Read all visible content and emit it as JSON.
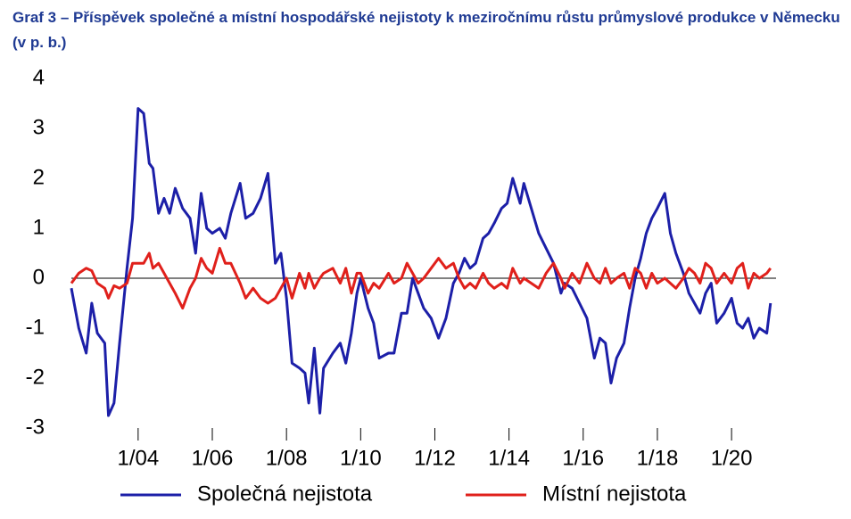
{
  "chart_data": {
    "type": "line",
    "title": "Graf 3 – Příspěvek společné a místní hospodářské nejistoty k meziročnímu růstu průmyslové produkce v Německu (v p. b.)",
    "x": [
      2002.2,
      2002.4,
      2002.6,
      2002.75,
      2002.9,
      2003.1,
      2003.2,
      2003.35,
      2003.5,
      2003.7,
      2003.85,
      2004.0,
      2004.15,
      2004.3,
      2004.4,
      2004.55,
      2004.7,
      2004.85,
      2005.0,
      2005.2,
      2005.4,
      2005.55,
      2005.7,
      2005.85,
      2006.0,
      2006.2,
      2006.35,
      2006.5,
      2006.75,
      2006.9,
      2007.1,
      2007.3,
      2007.5,
      2007.7,
      2007.85,
      2008.0,
      2008.15,
      2008.35,
      2008.5,
      2008.6,
      2008.75,
      2008.9,
      2009.0,
      2009.25,
      2009.45,
      2009.6,
      2009.75,
      2009.9,
      2010.0,
      2010.2,
      2010.35,
      2010.5,
      2010.75,
      2010.9,
      2011.1,
      2011.25,
      2011.4,
      2011.55,
      2011.7,
      2011.9,
      2012.1,
      2012.3,
      2012.5,
      2012.65,
      2012.8,
      2012.95,
      2013.1,
      2013.3,
      2013.45,
      2013.6,
      2013.8,
      2013.95,
      2014.1,
      2014.3,
      2014.4,
      2014.6,
      2014.8,
      2015.0,
      2015.2,
      2015.4,
      2015.5,
      2015.7,
      2015.9,
      2016.1,
      2016.3,
      2016.45,
      2016.6,
      2016.75,
      2016.9,
      2017.1,
      2017.25,
      2017.4,
      2017.55,
      2017.7,
      2017.85,
      2018.0,
      2018.2,
      2018.35,
      2018.5,
      2018.7,
      2018.85,
      2019.0,
      2019.15,
      2019.3,
      2019.45,
      2019.6,
      2019.8,
      2020.0,
      2020.15,
      2020.3,
      2020.45,
      2020.6,
      2020.75,
      2020.95,
      2021.05
    ],
    "series": [
      {
        "name": "Společná nejistota",
        "color": "#1c1fa8",
        "values": [
          -0.2,
          -1.0,
          -1.5,
          -0.5,
          -1.1,
          -1.3,
          -2.75,
          -2.5,
          -1.3,
          0.2,
          1.2,
          3.4,
          3.3,
          2.3,
          2.2,
          1.3,
          1.6,
          1.3,
          1.8,
          1.4,
          1.2,
          0.5,
          1.7,
          1.0,
          0.9,
          1.0,
          0.8,
          1.3,
          1.9,
          1.2,
          1.3,
          1.6,
          2.1,
          0.3,
          0.5,
          -0.4,
          -1.7,
          -1.8,
          -1.9,
          -2.5,
          -1.4,
          -2.7,
          -1.8,
          -1.5,
          -1.3,
          -1.7,
          -1.1,
          -0.3,
          0.0,
          -0.6,
          -0.9,
          -1.6,
          -1.5,
          -1.5,
          -0.7,
          -0.7,
          0.0,
          -0.3,
          -0.6,
          -0.8,
          -1.2,
          -0.8,
          -0.1,
          0.1,
          0.4,
          0.2,
          0.3,
          0.8,
          0.9,
          1.1,
          1.4,
          1.5,
          2.0,
          1.5,
          1.9,
          1.4,
          0.9,
          0.6,
          0.3,
          -0.3,
          -0.1,
          -0.2,
          -0.5,
          -0.8,
          -1.6,
          -1.2,
          -1.3,
          -2.1,
          -1.6,
          -1.3,
          -0.6,
          0.0,
          0.4,
          0.9,
          1.2,
          1.4,
          1.7,
          0.9,
          0.5,
          0.1,
          -0.3,
          -0.5,
          -0.7,
          -0.3,
          -0.1,
          -0.9,
          -0.7,
          -0.4,
          -0.9,
          -1.0,
          -0.8,
          -1.2,
          -1.0,
          -1.1,
          -0.5
        ]
      },
      {
        "name": "Místní nejistota",
        "color": "#e0201b",
        "values": [
          -0.1,
          0.1,
          0.2,
          0.15,
          -0.1,
          -0.2,
          -0.4,
          -0.15,
          -0.2,
          -0.1,
          0.3,
          0.3,
          0.3,
          0.5,
          0.2,
          0.3,
          0.1,
          -0.1,
          -0.3,
          -0.6,
          -0.2,
          0.0,
          0.4,
          0.2,
          0.1,
          0.6,
          0.3,
          0.3,
          -0.1,
          -0.4,
          -0.2,
          -0.4,
          -0.5,
          -0.4,
          -0.2,
          0.0,
          -0.4,
          0.1,
          -0.2,
          0.1,
          -0.2,
          0.0,
          0.1,
          0.2,
          -0.1,
          0.2,
          -0.3,
          0.1,
          0.1,
          -0.3,
          -0.1,
          -0.2,
          0.1,
          -0.1,
          0.0,
          0.3,
          0.1,
          -0.1,
          0.0,
          0.2,
          0.4,
          0.2,
          0.3,
          0.0,
          -0.2,
          -0.1,
          -0.2,
          0.1,
          -0.1,
          -0.2,
          -0.1,
          -0.2,
          0.2,
          -0.1,
          0.0,
          -0.1,
          -0.2,
          0.1,
          0.3,
          0.0,
          -0.2,
          0.1,
          -0.1,
          0.3,
          0.0,
          -0.1,
          0.2,
          -0.1,
          0.0,
          0.1,
          -0.2,
          0.2,
          0.1,
          -0.2,
          0.1,
          -0.1,
          0.0,
          -0.1,
          -0.2,
          0.0,
          0.2,
          0.1,
          -0.1,
          0.3,
          0.2,
          -0.1,
          0.1,
          -0.1,
          0.2,
          0.3,
          -0.2,
          0.1,
          0.0,
          0.1,
          0.2
        ]
      }
    ],
    "xlim": [
      2002.2,
      2021.2
    ],
    "xticks": [
      {
        "value": 2004,
        "label": "1/04"
      },
      {
        "value": 2006,
        "label": "1/06"
      },
      {
        "value": 2008,
        "label": "1/08"
      },
      {
        "value": 2010,
        "label": "1/10"
      },
      {
        "value": 2012,
        "label": "1/12"
      },
      {
        "value": 2014,
        "label": "1/14"
      },
      {
        "value": 2016,
        "label": "1/16"
      },
      {
        "value": 2018,
        "label": "1/18"
      },
      {
        "value": 2020,
        "label": "1/20"
      }
    ],
    "ylim": [
      -3,
      4
    ],
    "yticks": [
      -3,
      -2,
      -1,
      0,
      1,
      2,
      3,
      4
    ],
    "zero_line": true,
    "legend": "bottom"
  }
}
